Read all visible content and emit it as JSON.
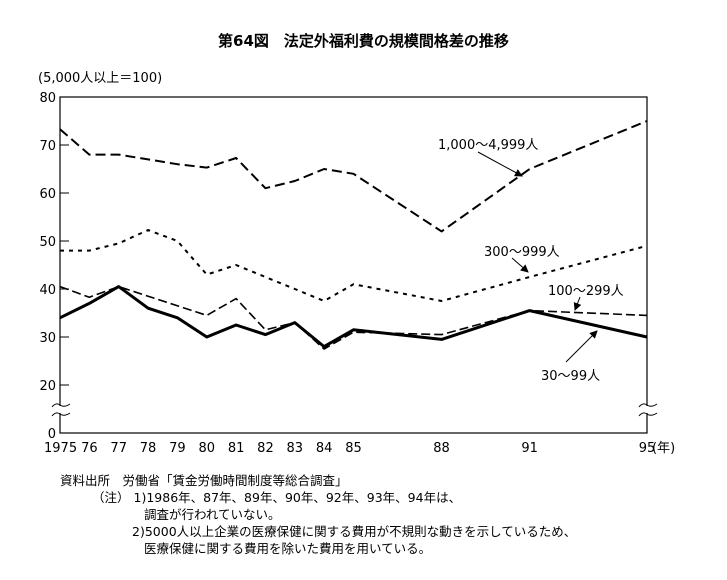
{
  "chart_data": {
    "type": "line",
    "title": "第64図　法定外福利費の規模間格差の推移",
    "ylabel": "(5,000人以上＝100)",
    "xlabel": "(年)",
    "ylim": [
      0,
      80
    ],
    "y_break": [
      0,
      20
    ],
    "yticks": [
      0,
      20,
      30,
      40,
      50,
      60,
      70,
      80
    ],
    "x": [
      1975,
      1976,
      1977,
      1978,
      1979,
      1980,
      1981,
      1982,
      1983,
      1984,
      1985,
      1988,
      1991,
      1995
    ],
    "xtick_labels": [
      "1975",
      "76",
      "77",
      "78",
      "79",
      "80",
      "81",
      "82",
      "83",
      "84",
      "85",
      "88",
      "91",
      "95"
    ],
    "grid": false,
    "series": [
      {
        "name": "1,000～4,999人",
        "style": "long-dash",
        "values": [
          73.3,
          68,
          68,
          67,
          66,
          65.3,
          67.3,
          61,
          62.5,
          65,
          64,
          52,
          65,
          75
        ]
      },
      {
        "name": "300～999人",
        "style": "short-dash",
        "values": [
          48,
          48,
          49.5,
          52.3,
          50,
          43,
          45,
          42.5,
          40,
          37.5,
          41,
          37.5,
          42.5,
          49
        ]
      },
      {
        "name": "100～299人",
        "style": "dash",
        "values": [
          40.5,
          38.3,
          40.5,
          38.5,
          36.5,
          34.5,
          38,
          31.5,
          33,
          27.5,
          31,
          30.5,
          35.5,
          34.5
        ]
      },
      {
        "name": "30～99人",
        "style": "solid-thick",
        "values": [
          34,
          37,
          40.5,
          36,
          34,
          30,
          32.5,
          30.5,
          33,
          28,
          31.5,
          29.5,
          35.5,
          30
        ]
      }
    ]
  },
  "notes": {
    "source": "資料出所　労働省「賃金労働時間制度等総合調査」",
    "note_label": "（注）",
    "note1a": "1)1986年、87年、89年、90年、92年、93年、94年は、",
    "note1b": "調査が行われていない。",
    "note2a": "2)5000人以上企業の医療保健に関する費用が不規則な動きを示しているため、",
    "note2b": "医療保健に関する費用を除いた費用を用いている。"
  }
}
